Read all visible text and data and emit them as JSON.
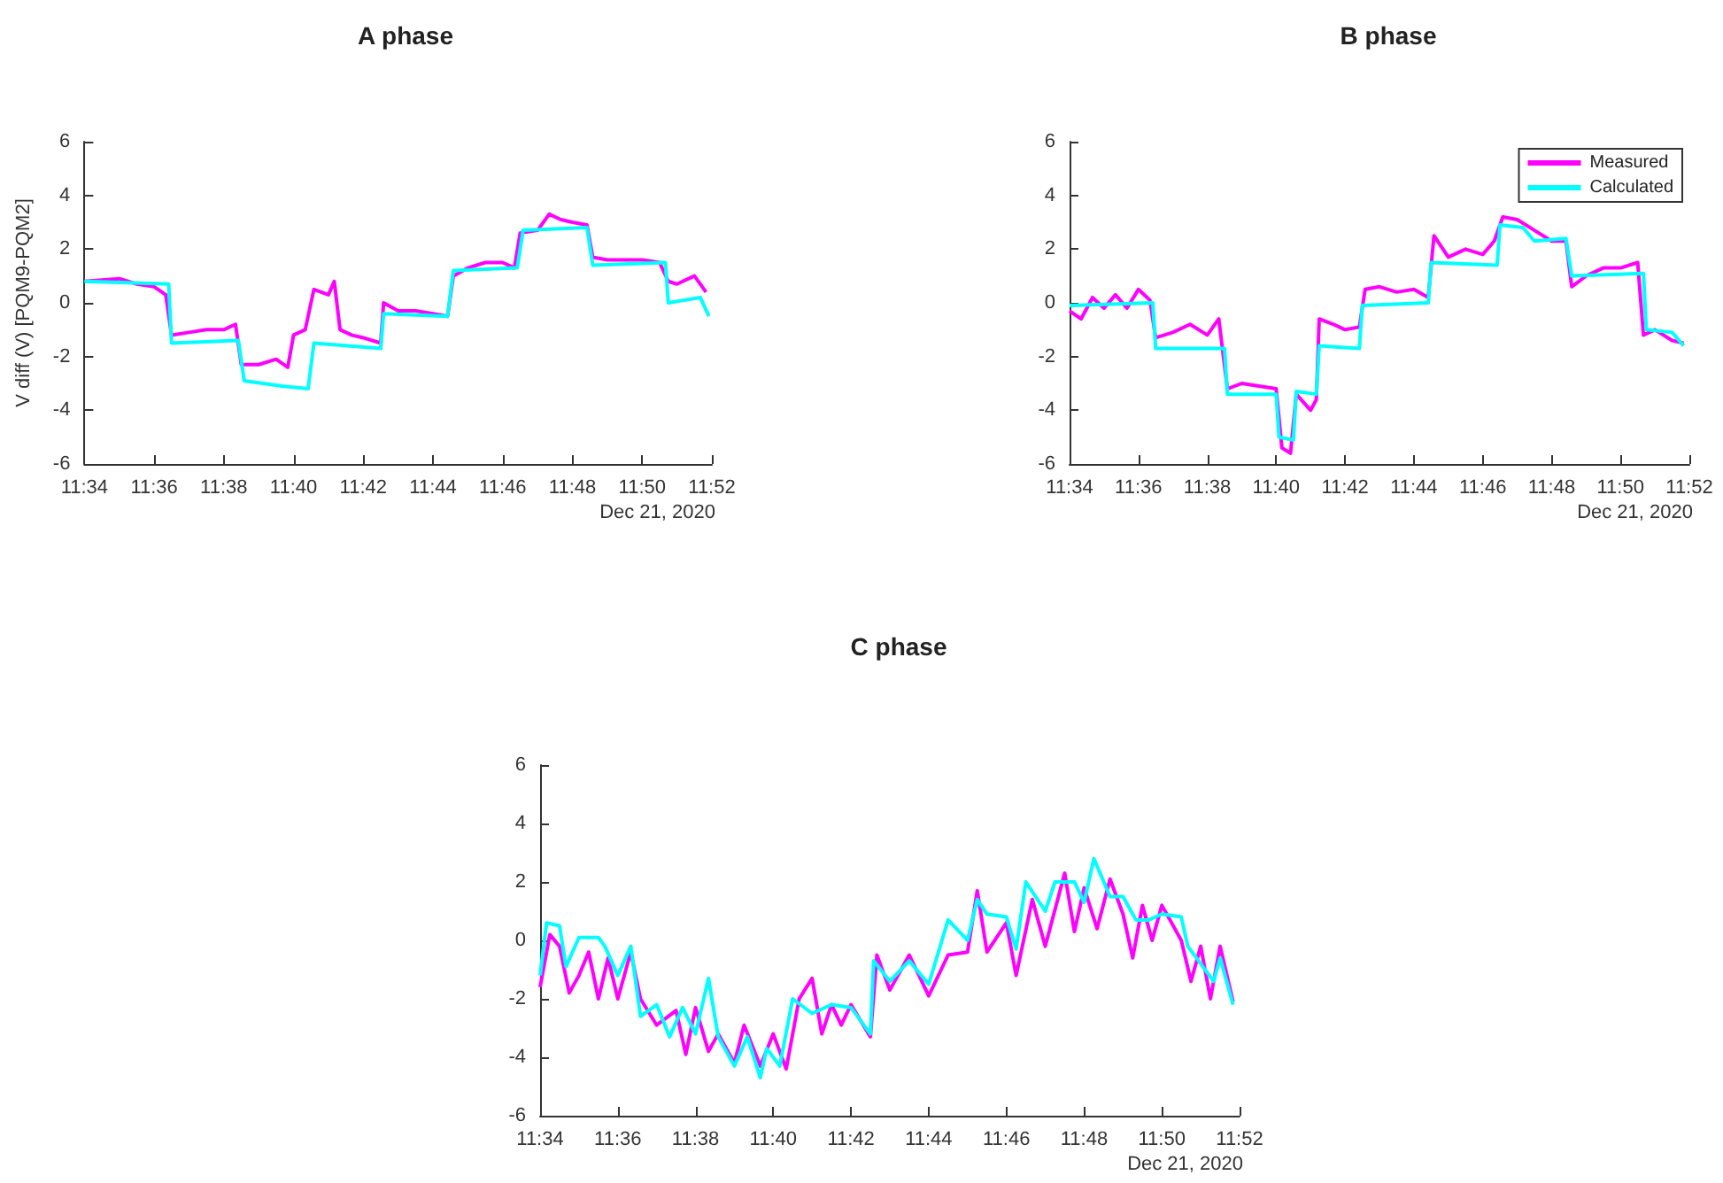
{
  "chart_data": [
    {
      "type": "line",
      "title": "A phase",
      "ylabel": "V diff (V) [PQM9-PQM2]",
      "annotations": [
        "Dec 21, 2020"
      ],
      "xlim": [
        "2020-12-21T11:34:00",
        "2020-12-21T11:52:00"
      ],
      "xticks": [
        {
          "value": "2020-12-21T11:34:00",
          "label": "11:34"
        },
        {
          "value": "2020-12-21T11:36:00",
          "label": "11:36"
        },
        {
          "value": "2020-12-21T11:38:00",
          "label": "11:38"
        },
        {
          "value": "2020-12-21T11:40:00",
          "label": "11:40"
        },
        {
          "value": "2020-12-21T11:42:00",
          "label": "11:42"
        },
        {
          "value": "2020-12-21T11:44:00",
          "label": "11:44"
        },
        {
          "value": "2020-12-21T11:46:00",
          "label": "11:46"
        },
        {
          "value": "2020-12-21T11:48:00",
          "label": "11:48"
        },
        {
          "value": "2020-12-21T11:50:00",
          "label": "11:50"
        },
        {
          "value": "2020-12-21T11:52:00",
          "label": "11:52"
        }
      ],
      "ylim": [
        -6,
        6
      ],
      "yticks": [
        -6,
        -4,
        -2,
        0,
        2,
        4,
        6
      ],
      "legend": false,
      "series": [
        {
          "color": "#ff00ff",
          "x": [
            "2020-12-21T11:34:00",
            "2020-12-21T11:35:00",
            "2020-12-21T11:35:30",
            "2020-12-21T11:36:00",
            "2020-12-21T11:36:20",
            "2020-12-21T11:36:30",
            "2020-12-21T11:37:00",
            "2020-12-21T11:37:30",
            "2020-12-21T11:38:00",
            "2020-12-21T11:38:20",
            "2020-12-21T11:38:30",
            "2020-12-21T11:39:00",
            "2020-12-21T11:39:30",
            "2020-12-21T11:39:50",
            "2020-12-21T11:40:00",
            "2020-12-21T11:40:20",
            "2020-12-21T11:40:35",
            "2020-12-21T11:41:00",
            "2020-12-21T11:41:10",
            "2020-12-21T11:41:20",
            "2020-12-21T11:41:40",
            "2020-12-21T11:42:00",
            "2020-12-21T11:42:30",
            "2020-12-21T11:42:35",
            "2020-12-21T11:43:00",
            "2020-12-21T11:43:30",
            "2020-12-21T11:44:00",
            "2020-12-21T11:44:25",
            "2020-12-21T11:44:35",
            "2020-12-21T11:45:00",
            "2020-12-21T11:45:30",
            "2020-12-21T11:46:00",
            "2020-12-21T11:46:20",
            "2020-12-21T11:46:30",
            "2020-12-21T11:47:00",
            "2020-12-21T11:47:20",
            "2020-12-21T11:47:40",
            "2020-12-21T11:48:00",
            "2020-12-21T11:48:25",
            "2020-12-21T11:48:35",
            "2020-12-21T11:49:00",
            "2020-12-21T11:49:30",
            "2020-12-21T11:50:00",
            "2020-12-21T11:50:30",
            "2020-12-21T11:50:45",
            "2020-12-21T11:51:00",
            "2020-12-21T11:51:30",
            "2020-12-21T11:51:50"
          ],
          "values": [
            0.8,
            0.9,
            0.7,
            0.6,
            0.3,
            -1.2,
            -1.1,
            -1.0,
            -1.0,
            -0.8,
            -2.3,
            -2.3,
            -2.1,
            -2.4,
            -1.2,
            -1.0,
            0.5,
            0.3,
            0.8,
            -1.0,
            -1.2,
            -1.3,
            -1.5,
            0.0,
            -0.3,
            -0.3,
            -0.4,
            -0.5,
            1.0,
            1.3,
            1.5,
            1.5,
            1.3,
            2.6,
            2.7,
            3.3,
            3.1,
            3.0,
            2.9,
            1.7,
            1.6,
            1.6,
            1.6,
            1.5,
            0.8,
            0.7,
            1.0,
            0.4
          ]
        },
        {
          "color": "#00ffff",
          "x": [
            "2020-12-21T11:34:00",
            "2020-12-21T11:36:25",
            "2020-12-21T11:36:30",
            "2020-12-21T11:38:25",
            "2020-12-21T11:38:35",
            "2020-12-21T11:39:40",
            "2020-12-21T11:40:25",
            "2020-12-21T11:40:35",
            "2020-12-21T11:42:30",
            "2020-12-21T11:42:35",
            "2020-12-21T11:44:25",
            "2020-12-21T11:44:35",
            "2020-12-21T11:46:25",
            "2020-12-21T11:46:35",
            "2020-12-21T11:48:25",
            "2020-12-21T11:48:35",
            "2020-12-21T11:50:40",
            "2020-12-21T11:50:45",
            "2020-12-21T11:51:40",
            "2020-12-21T11:51:55"
          ],
          "values": [
            0.8,
            0.7,
            -1.5,
            -1.4,
            -2.9,
            -3.1,
            -3.2,
            -1.5,
            -1.7,
            -0.4,
            -0.5,
            1.2,
            1.3,
            2.7,
            2.8,
            1.4,
            1.5,
            0.0,
            0.2,
            -0.5
          ]
        }
      ]
    },
    {
      "type": "line",
      "title": "B phase",
      "annotations": [
        "Dec 21, 2020"
      ],
      "xlim": [
        "2020-12-21T11:34:00",
        "2020-12-21T11:52:00"
      ],
      "xticks": [
        {
          "value": "2020-12-21T11:34:00",
          "label": "11:34"
        },
        {
          "value": "2020-12-21T11:36:00",
          "label": "11:36"
        },
        {
          "value": "2020-12-21T11:38:00",
          "label": "11:38"
        },
        {
          "value": "2020-12-21T11:40:00",
          "label": "11:40"
        },
        {
          "value": "2020-12-21T11:42:00",
          "label": "11:42"
        },
        {
          "value": "2020-12-21T11:44:00",
          "label": "11:44"
        },
        {
          "value": "2020-12-21T11:46:00",
          "label": "11:46"
        },
        {
          "value": "2020-12-21T11:48:00",
          "label": "11:48"
        },
        {
          "value": "2020-12-21T11:50:00",
          "label": "11:50"
        },
        {
          "value": "2020-12-21T11:52:00",
          "label": "11:52"
        }
      ],
      "ylim": [
        -6,
        6
      ],
      "yticks": [
        -6,
        -4,
        -2,
        0,
        2,
        4,
        6
      ],
      "legend": "top right",
      "series": [
        {
          "name": "Measured",
          "color": "#ff00ff",
          "x": [
            "2020-12-21T11:34:00",
            "2020-12-21T11:34:20",
            "2020-12-21T11:34:40",
            "2020-12-21T11:35:00",
            "2020-12-21T11:35:20",
            "2020-12-21T11:35:40",
            "2020-12-21T11:36:00",
            "2020-12-21T11:36:20",
            "2020-12-21T11:36:30",
            "2020-12-21T11:37:00",
            "2020-12-21T11:37:30",
            "2020-12-21T11:38:00",
            "2020-12-21T11:38:20",
            "2020-12-21T11:38:35",
            "2020-12-21T11:39:00",
            "2020-12-21T11:39:30",
            "2020-12-21T11:40:00",
            "2020-12-21T11:40:10",
            "2020-12-21T11:40:25",
            "2020-12-21T11:40:35",
            "2020-12-21T11:41:00",
            "2020-12-21T11:41:10",
            "2020-12-21T11:41:15",
            "2020-12-21T11:41:40",
            "2020-12-21T11:42:00",
            "2020-12-21T11:42:25",
            "2020-12-21T11:42:35",
            "2020-12-21T11:43:00",
            "2020-12-21T11:43:30",
            "2020-12-21T11:44:00",
            "2020-12-21T11:44:25",
            "2020-12-21T11:44:35",
            "2020-12-21T11:45:00",
            "2020-12-21T11:45:30",
            "2020-12-21T11:46:00",
            "2020-12-21T11:46:20",
            "2020-12-21T11:46:35",
            "2020-12-21T11:47:00",
            "2020-12-21T11:47:30",
            "2020-12-21T11:48:00",
            "2020-12-21T11:48:25",
            "2020-12-21T11:48:35",
            "2020-12-21T11:49:00",
            "2020-12-21T11:49:30",
            "2020-12-21T11:50:00",
            "2020-12-21T11:50:30",
            "2020-12-21T11:50:40",
            "2020-12-21T11:51:00",
            "2020-12-21T11:51:30",
            "2020-12-21T11:51:50"
          ],
          "values": [
            -0.3,
            -0.6,
            0.2,
            -0.2,
            0.3,
            -0.2,
            0.5,
            0.1,
            -1.3,
            -1.1,
            -0.8,
            -1.2,
            -0.6,
            -3.2,
            -3.0,
            -3.1,
            -3.2,
            -5.4,
            -5.6,
            -3.4,
            -4.0,
            -3.6,
            -0.6,
            -0.8,
            -1.0,
            -0.9,
            0.5,
            0.6,
            0.4,
            0.5,
            0.2,
            2.5,
            1.7,
            2.0,
            1.8,
            2.3,
            3.2,
            3.1,
            2.7,
            2.3,
            2.3,
            0.6,
            1.0,
            1.3,
            1.3,
            1.5,
            -1.2,
            -1.0,
            -1.4,
            -1.5
          ]
        },
        {
          "name": "Calculated",
          "color": "#00ffff",
          "x": [
            "2020-12-21T11:34:00",
            "2020-12-21T11:36:25",
            "2020-12-21T11:36:30",
            "2020-12-21T11:38:30",
            "2020-12-21T11:38:35",
            "2020-12-21T11:40:00",
            "2020-12-21T11:40:05",
            "2020-12-21T11:40:30",
            "2020-12-21T11:40:35",
            "2020-12-21T11:41:10",
            "2020-12-21T11:41:15",
            "2020-12-21T11:42:25",
            "2020-12-21T11:42:30",
            "2020-12-21T11:44:25",
            "2020-12-21T11:44:30",
            "2020-12-21T11:46:25",
            "2020-12-21T11:46:30",
            "2020-12-21T11:47:10",
            "2020-12-21T11:47:30",
            "2020-12-21T11:48:25",
            "2020-12-21T11:48:35",
            "2020-12-21T11:50:40",
            "2020-12-21T11:50:45",
            "2020-12-21T11:51:30",
            "2020-12-21T11:51:50"
          ],
          "values": [
            -0.1,
            0.0,
            -1.7,
            -1.7,
            -3.4,
            -3.4,
            -5.0,
            -5.1,
            -3.3,
            -3.4,
            -1.6,
            -1.7,
            -0.1,
            0.0,
            1.5,
            1.4,
            2.9,
            2.8,
            2.3,
            2.4,
            1.0,
            1.1,
            -1.0,
            -1.1,
            -1.6
          ]
        }
      ]
    },
    {
      "type": "line",
      "title": "C phase",
      "annotations": [
        "Dec 21, 2020"
      ],
      "xlim": [
        "2020-12-21T11:34:00",
        "2020-12-21T11:52:00"
      ],
      "xticks": [
        {
          "value": "2020-12-21T11:34:00",
          "label": "11:34"
        },
        {
          "value": "2020-12-21T11:36:00",
          "label": "11:36"
        },
        {
          "value": "2020-12-21T11:38:00",
          "label": "11:38"
        },
        {
          "value": "2020-12-21T11:40:00",
          "label": "11:40"
        },
        {
          "value": "2020-12-21T11:42:00",
          "label": "11:42"
        },
        {
          "value": "2020-12-21T11:44:00",
          "label": "11:44"
        },
        {
          "value": "2020-12-21T11:46:00",
          "label": "11:46"
        },
        {
          "value": "2020-12-21T11:48:00",
          "label": "11:48"
        },
        {
          "value": "2020-12-21T11:50:00",
          "label": "11:50"
        },
        {
          "value": "2020-12-21T11:52:00",
          "label": "11:52"
        }
      ],
      "ylim": [
        -6,
        6
      ],
      "yticks": [
        -6,
        -4,
        -2,
        0,
        2,
        4,
        6
      ],
      "legend": false,
      "series": [
        {
          "color": "#ff00ff",
          "x": [
            "2020-12-21T11:34:00",
            "2020-12-21T11:34:15",
            "2020-12-21T11:34:30",
            "2020-12-21T11:34:45",
            "2020-12-21T11:35:00",
            "2020-12-21T11:35:15",
            "2020-12-21T11:35:30",
            "2020-12-21T11:35:45",
            "2020-12-21T11:36:00",
            "2020-12-21T11:36:20",
            "2020-12-21T11:36:35",
            "2020-12-21T11:37:00",
            "2020-12-21T11:37:30",
            "2020-12-21T11:37:45",
            "2020-12-21T11:38:00",
            "2020-12-21T11:38:20",
            "2020-12-21T11:38:35",
            "2020-12-21T11:39:00",
            "2020-12-21T11:39:15",
            "2020-12-21T11:39:40",
            "2020-12-21T11:40:00",
            "2020-12-21T11:40:20",
            "2020-12-21T11:40:40",
            "2020-12-21T11:41:00",
            "2020-12-21T11:41:15",
            "2020-12-21T11:41:30",
            "2020-12-21T11:41:45",
            "2020-12-21T11:42:00",
            "2020-12-21T11:42:30",
            "2020-12-21T11:42:40",
            "2020-12-21T11:43:00",
            "2020-12-21T11:43:30",
            "2020-12-21T11:44:00",
            "2020-12-21T11:44:30",
            "2020-12-21T11:45:00",
            "2020-12-21T11:45:15",
            "2020-12-21T11:45:30",
            "2020-12-21T11:46:00",
            "2020-12-21T11:46:15",
            "2020-12-21T11:46:40",
            "2020-12-21T11:47:00",
            "2020-12-21T11:47:30",
            "2020-12-21T11:47:45",
            "2020-12-21T11:48:00",
            "2020-12-21T11:48:20",
            "2020-12-21T11:48:40",
            "2020-12-21T11:49:00",
            "2020-12-21T11:49:15",
            "2020-12-21T11:49:30",
            "2020-12-21T11:49:45",
            "2020-12-21T11:50:00",
            "2020-12-21T11:50:30",
            "2020-12-21T11:50:45",
            "2020-12-21T11:51:00",
            "2020-12-21T11:51:15",
            "2020-12-21T11:51:30",
            "2020-12-21T11:51:50"
          ],
          "values": [
            -1.6,
            0.2,
            -0.2,
            -1.8,
            -1.2,
            -0.4,
            -2.0,
            -0.6,
            -2.0,
            -0.4,
            -2.0,
            -2.9,
            -2.4,
            -3.9,
            -2.3,
            -3.8,
            -3.2,
            -4.2,
            -2.9,
            -4.3,
            -3.2,
            -4.4,
            -2.0,
            -1.3,
            -3.2,
            -2.2,
            -2.9,
            -2.2,
            -3.3,
            -0.5,
            -1.7,
            -0.5,
            -1.9,
            -0.5,
            -0.4,
            1.7,
            -0.4,
            0.6,
            -1.2,
            1.4,
            -0.2,
            2.3,
            0.3,
            1.8,
            0.4,
            2.1,
            0.9,
            -0.6,
            1.2,
            0.0,
            1.2,
            0.0,
            -1.4,
            -0.2,
            -2.0,
            -0.2,
            -2.1
          ]
        },
        {
          "color": "#00ffff",
          "x": [
            "2020-12-21T11:34:00",
            "2020-12-21T11:34:10",
            "2020-12-21T11:34:30",
            "2020-12-21T11:34:40",
            "2020-12-21T11:35:00",
            "2020-12-21T11:35:30",
            "2020-12-21T11:35:40",
            "2020-12-21T11:36:00",
            "2020-12-21T11:36:20",
            "2020-12-21T11:36:35",
            "2020-12-21T11:37:00",
            "2020-12-21T11:37:20",
            "2020-12-21T11:37:40",
            "2020-12-21T11:38:00",
            "2020-12-21T11:38:20",
            "2020-12-21T11:38:35",
            "2020-12-21T11:39:00",
            "2020-12-21T11:39:20",
            "2020-12-21T11:39:40",
            "2020-12-21T11:39:50",
            "2020-12-21T11:40:10",
            "2020-12-21T11:40:30",
            "2020-12-21T11:41:00",
            "2020-12-21T11:41:30",
            "2020-12-21T11:42:00",
            "2020-12-21T11:42:30",
            "2020-12-21T11:42:35",
            "2020-12-21T11:43:00",
            "2020-12-21T11:43:30",
            "2020-12-21T11:44:00",
            "2020-12-21T11:44:30",
            "2020-12-21T11:45:00",
            "2020-12-21T11:45:15",
            "2020-12-21T11:45:30",
            "2020-12-21T11:46:00",
            "2020-12-21T11:46:15",
            "2020-12-21T11:46:30",
            "2020-12-21T11:47:00",
            "2020-12-21T11:47:15",
            "2020-12-21T11:47:45",
            "2020-12-21T11:48:00",
            "2020-12-21T11:48:15",
            "2020-12-21T11:48:40",
            "2020-12-21T11:49:00",
            "2020-12-21T11:49:20",
            "2020-12-21T11:49:40",
            "2020-12-21T11:50:00",
            "2020-12-21T11:50:30",
            "2020-12-21T11:50:40",
            "2020-12-21T11:51:00",
            "2020-12-21T11:51:20",
            "2020-12-21T11:51:30",
            "2020-12-21T11:51:50"
          ],
          "values": [
            -1.2,
            0.6,
            0.5,
            -0.9,
            0.1,
            0.1,
            -0.2,
            -1.2,
            -0.2,
            -2.6,
            -2.2,
            -3.3,
            -2.3,
            -3.2,
            -1.3,
            -3.3,
            -4.3,
            -3.3,
            -4.7,
            -3.7,
            -4.3,
            -2.0,
            -2.5,
            -2.2,
            -2.3,
            -3.2,
            -0.7,
            -1.4,
            -0.7,
            -1.5,
            0.7,
            0.0,
            1.4,
            0.9,
            0.8,
            -0.3,
            2.0,
            1.0,
            2.0,
            2.0,
            1.3,
            2.8,
            1.5,
            1.5,
            0.7,
            0.7,
            0.9,
            0.8,
            -0.2,
            -0.8,
            -1.4,
            -0.6,
            -2.2
          ]
        }
      ]
    }
  ]
}
